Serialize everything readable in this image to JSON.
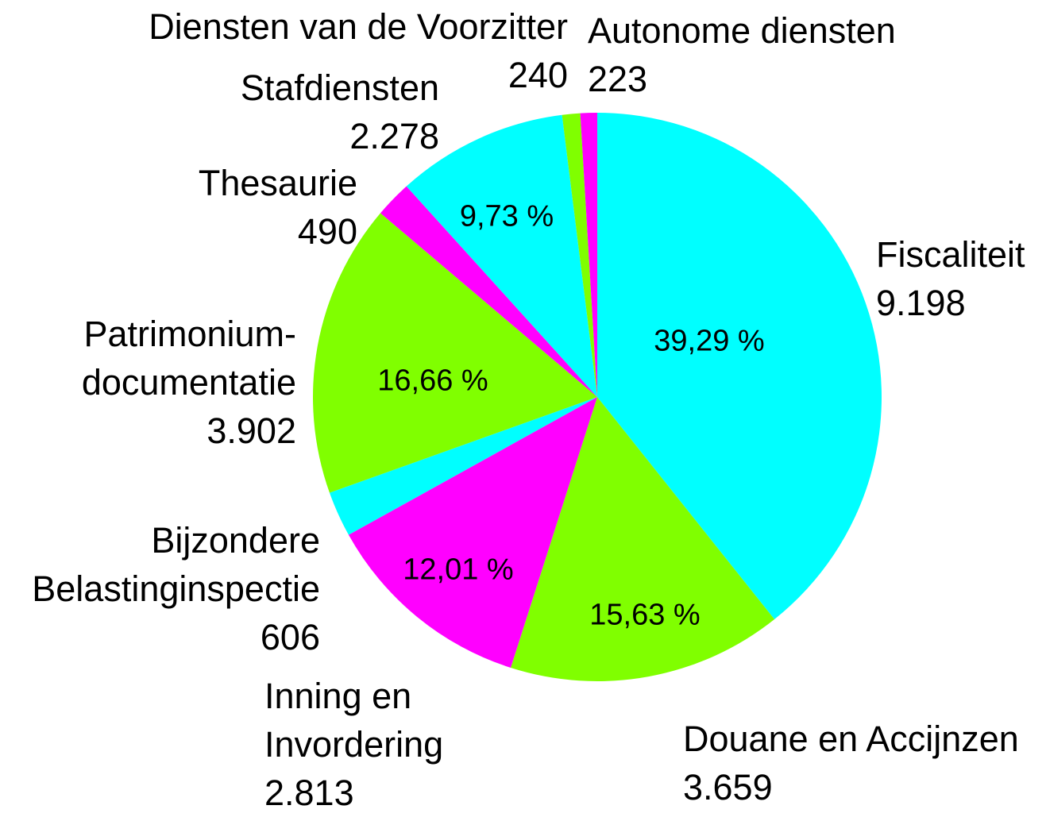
{
  "chart_data": {
    "type": "pie",
    "categories": [
      "Fiscaliteit",
      "Douane en Accijnzen",
      "Inning en\nInvordering",
      "Bijzondere\nBelastinginspectie",
      "Patrimonium-\ndocumentatie",
      "Thesaurie",
      "Stafdiensten",
      "Diensten van de Voorzitter",
      "Autonome diensten"
    ],
    "values": [
      9198,
      3659,
      2813,
      606,
      3902,
      490,
      2278,
      240,
      223
    ],
    "value_labels": [
      "9.198",
      "3.659",
      "2.813",
      "606",
      "3.902",
      "490",
      "2.278",
      "240",
      "223"
    ],
    "percent_labels": [
      "39,29 %",
      "15,63 %",
      "12,01 %",
      null,
      "16,66 %",
      null,
      "9,73 %",
      null,
      null
    ],
    "colors": [
      "#00ffff",
      "#80ff00",
      "#ff00ff",
      "#00ffff",
      "#80ff00",
      "#ff00ff",
      "#00ffff",
      "#80ff00",
      "#ff00ff"
    ]
  }
}
